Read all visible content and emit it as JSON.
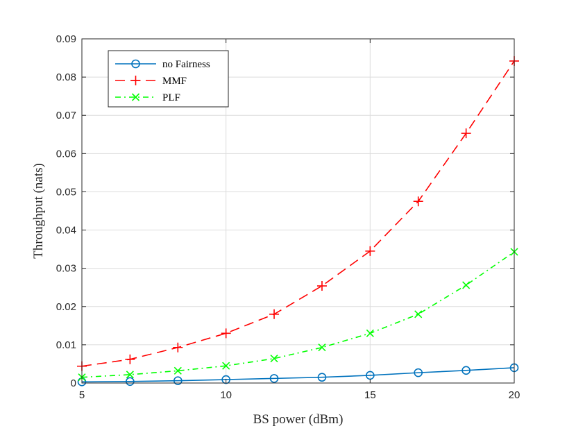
{
  "chart_data": {
    "type": "line",
    "xlabel": "BS power (dBm)",
    "ylabel": "Throughput (nats)",
    "xlim": [
      5,
      20
    ],
    "ylim": [
      0,
      0.09
    ],
    "xticks": [
      5,
      10,
      15,
      20
    ],
    "yticks": [
      0,
      0.01,
      0.02,
      0.03,
      0.04,
      0.05,
      0.06,
      0.07,
      0.08,
      0.09
    ],
    "xtick_labels": [
      "5",
      "10",
      "15",
      "20"
    ],
    "ytick_labels": [
      "0",
      "0.01",
      "0.02",
      "0.03",
      "0.04",
      "0.05",
      "0.06",
      "0.07",
      "0.08",
      "0.09"
    ],
    "grid": true,
    "legend_position": "top-left",
    "x": [
      5,
      6.67,
      8.33,
      10,
      11.67,
      13.33,
      15,
      16.67,
      18.33,
      20
    ],
    "series": [
      {
        "name": "no Fairness",
        "color": "#0072BD",
        "line_style": "solid",
        "marker": "circle",
        "values": [
          0.0003,
          0.0004,
          0.0006,
          0.0009,
          0.0012,
          0.0015,
          0.002,
          0.0027,
          0.0033,
          0.004
        ]
      },
      {
        "name": "MMF",
        "color": "#FF0000",
        "line_style": "dashed",
        "marker": "plus",
        "values": [
          0.0044,
          0.0062,
          0.0093,
          0.013,
          0.018,
          0.0254,
          0.0345,
          0.0475,
          0.0653,
          0.0842
        ]
      },
      {
        "name": "PLF",
        "color": "#00FF00",
        "line_style": "dashdot",
        "marker": "x",
        "values": [
          0.0015,
          0.0022,
          0.0032,
          0.0045,
          0.0064,
          0.0093,
          0.013,
          0.018,
          0.0256,
          0.0343
        ]
      }
    ]
  }
}
